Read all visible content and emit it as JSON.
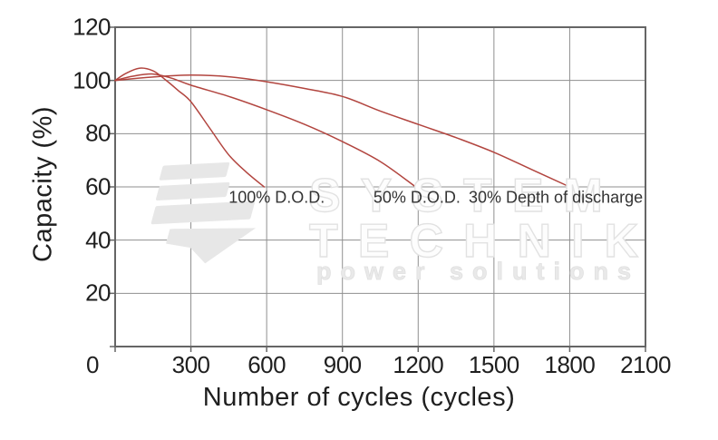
{
  "chart_data": {
    "type": "line",
    "title": "",
    "xlabel": "Number of cycles (cycles)",
    "ylabel": "Capacity (%)",
    "xlim": [
      0,
      2100
    ],
    "ylim": [
      0,
      120
    ],
    "x_ticks": [
      0,
      300,
      600,
      900,
      1200,
      1500,
      1800,
      2100
    ],
    "y_ticks": [
      0,
      20,
      40,
      60,
      80,
      100,
      120
    ],
    "y_tick_labels": [
      20,
      40,
      60,
      80,
      100,
      120
    ],
    "grid": true,
    "legend_position": "none",
    "series": [
      {
        "name": "100% D.O.D.",
        "color": "#b2453f",
        "label_anchor": {
          "x": 640,
          "y": 56,
          "anchor": "center"
        },
        "points": [
          [
            0,
            100
          ],
          [
            40,
            102.5
          ],
          [
            95,
            104.6
          ],
          [
            150,
            103.6
          ],
          [
            200,
            100.2
          ],
          [
            250,
            96.2
          ],
          [
            300,
            92
          ],
          [
            375,
            82
          ],
          [
            450,
            72
          ],
          [
            520,
            65.5
          ],
          [
            590,
            60
          ]
        ]
      },
      {
        "name": "50% D.O.D.",
        "color": "#b2453f",
        "label_anchor": {
          "x": 1195,
          "y": 56,
          "anchor": "center"
        },
        "points": [
          [
            0,
            100
          ],
          [
            70,
            101.6
          ],
          [
            150,
            102.4
          ],
          [
            225,
            100.8
          ],
          [
            300,
            98.2
          ],
          [
            450,
            94
          ],
          [
            600,
            89
          ],
          [
            750,
            83.5
          ],
          [
            900,
            77
          ],
          [
            1050,
            69.5
          ],
          [
            1190,
            60
          ]
        ]
      },
      {
        "name": "30% Depth of discharge",
        "color": "#b2453f",
        "label_anchor": {
          "x": 1400,
          "y": 56,
          "anchor": "left"
        },
        "points": [
          [
            0,
            100
          ],
          [
            150,
            101.3
          ],
          [
            300,
            102
          ],
          [
            450,
            101.4
          ],
          [
            600,
            99.5
          ],
          [
            750,
            97
          ],
          [
            900,
            94
          ],
          [
            1050,
            88.5
          ],
          [
            1200,
            83.5
          ],
          [
            1350,
            78.5
          ],
          [
            1500,
            73
          ],
          [
            1650,
            66.5
          ],
          [
            1800,
            60
          ]
        ]
      }
    ]
  },
  "watermark": {
    "line1": "SYSTEM",
    "line2": "TECHNIK",
    "line3": "power solutions"
  },
  "colors": {
    "curve": "#b2453f",
    "grid": "#8f8f8f",
    "axis_border": "#656565",
    "text": "#1f1f1f",
    "series_label_text": "#333333",
    "watermark_gray": "#e7e7e7",
    "background": "#ffffff"
  }
}
